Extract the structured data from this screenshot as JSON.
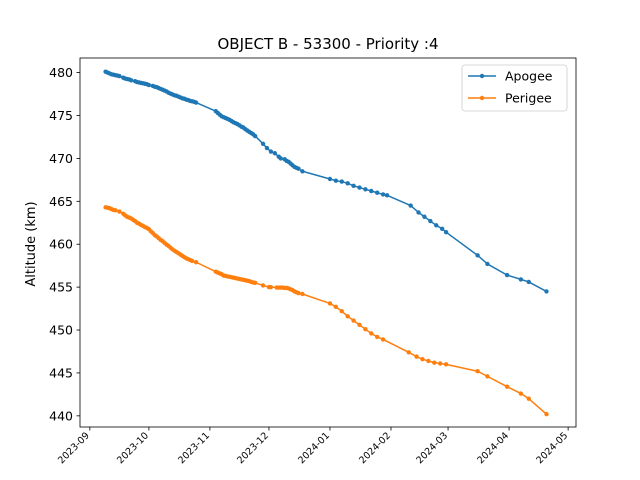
{
  "chart_data": {
    "type": "line",
    "title": "OBJECT B - 53300 - Priority :4",
    "xlabel": "",
    "ylabel": "Altitude (km)",
    "xlim": [
      "2023-08-27",
      "2024-05-05"
    ],
    "ylim": [
      438.7,
      481.7
    ],
    "x_ticks": [
      "2023-09",
      "2023-10",
      "2023-11",
      "2023-12",
      "2024-01",
      "2024-02",
      "2024-03",
      "2024-04",
      "2024-05"
    ],
    "y_ticks": [
      440,
      445,
      450,
      455,
      460,
      465,
      470,
      475,
      480
    ],
    "legend_position": "top-right",
    "grid": false,
    "series": [
      {
        "name": "Apogee",
        "color": "#1f77b4",
        "points": [
          [
            "2023-09-09",
            480.1
          ],
          [
            "2023-09-10",
            480.0
          ],
          [
            "2023-09-11",
            479.9
          ],
          [
            "2023-09-12",
            479.8
          ],
          [
            "2023-09-13",
            479.75
          ],
          [
            "2023-09-14",
            479.7
          ],
          [
            "2023-09-15",
            479.65
          ],
          [
            "2023-09-16",
            479.6
          ],
          [
            "2023-09-18",
            479.4
          ],
          [
            "2023-09-19",
            479.3
          ],
          [
            "2023-09-20",
            479.25
          ],
          [
            "2023-09-21",
            479.2
          ],
          [
            "2023-09-22",
            479.1
          ],
          [
            "2023-09-24",
            479.0
          ],
          [
            "2023-09-25",
            478.9
          ],
          [
            "2023-09-26",
            478.85
          ],
          [
            "2023-09-27",
            478.8
          ],
          [
            "2023-09-28",
            478.75
          ],
          [
            "2023-09-29",
            478.7
          ],
          [
            "2023-09-30",
            478.65
          ],
          [
            "2023-10-01",
            478.55
          ],
          [
            "2023-10-03",
            478.45
          ],
          [
            "2023-10-04",
            478.35
          ],
          [
            "2023-10-05",
            478.3
          ],
          [
            "2023-10-06",
            478.2
          ],
          [
            "2023-10-07",
            478.1
          ],
          [
            "2023-10-08",
            478.0
          ],
          [
            "2023-10-09",
            477.9
          ],
          [
            "2023-10-10",
            477.8
          ],
          [
            "2023-10-11",
            477.65
          ],
          [
            "2023-10-12",
            477.55
          ],
          [
            "2023-10-13",
            477.45
          ],
          [
            "2023-10-14",
            477.35
          ],
          [
            "2023-10-15",
            477.3
          ],
          [
            "2023-10-16",
            477.2
          ],
          [
            "2023-10-17",
            477.1
          ],
          [
            "2023-10-18",
            477.0
          ],
          [
            "2023-10-19",
            476.95
          ],
          [
            "2023-10-20",
            476.85
          ],
          [
            "2023-10-21",
            476.8
          ],
          [
            "2023-10-22",
            476.7
          ],
          [
            "2023-10-23",
            476.65
          ],
          [
            "2023-10-24",
            476.6
          ],
          [
            "2023-10-25",
            476.5
          ],
          [
            "2023-11-04",
            475.5
          ],
          [
            "2023-11-05",
            475.3
          ],
          [
            "2023-11-06",
            475.1
          ],
          [
            "2023-11-07",
            474.9
          ],
          [
            "2023-11-08",
            474.8
          ],
          [
            "2023-11-09",
            474.7
          ],
          [
            "2023-11-10",
            474.6
          ],
          [
            "2023-11-11",
            474.5
          ],
          [
            "2023-11-12",
            474.35
          ],
          [
            "2023-11-13",
            474.2
          ],
          [
            "2023-11-14",
            474.1
          ],
          [
            "2023-11-15",
            474.0
          ],
          [
            "2023-11-16",
            473.85
          ],
          [
            "2023-11-17",
            473.7
          ],
          [
            "2023-11-18",
            473.6
          ],
          [
            "2023-11-19",
            473.4
          ],
          [
            "2023-11-20",
            473.25
          ],
          [
            "2023-11-21",
            473.1
          ],
          [
            "2023-11-22",
            472.95
          ],
          [
            "2023-11-23",
            472.8
          ],
          [
            "2023-11-24",
            472.6
          ],
          [
            "2023-11-28",
            471.7
          ],
          [
            "2023-11-30",
            471.2
          ],
          [
            "2023-12-02",
            470.8
          ],
          [
            "2023-12-04",
            470.6
          ],
          [
            "2023-12-06",
            470.2
          ],
          [
            "2023-12-07",
            470.0
          ],
          [
            "2023-12-09",
            469.9
          ],
          [
            "2023-12-10",
            469.7
          ],
          [
            "2023-12-11",
            469.6
          ],
          [
            "2023-12-12",
            469.4
          ],
          [
            "2023-12-13",
            469.2
          ],
          [
            "2023-12-14",
            469.0
          ],
          [
            "2023-12-15",
            468.9
          ],
          [
            "2023-12-16",
            468.8
          ],
          [
            "2023-12-18",
            468.5
          ],
          [
            "2024-01-01",
            467.6
          ],
          [
            "2024-01-04",
            467.4
          ],
          [
            "2024-01-07",
            467.3
          ],
          [
            "2024-01-10",
            467.1
          ],
          [
            "2024-01-13",
            466.8
          ],
          [
            "2024-01-16",
            466.6
          ],
          [
            "2024-01-19",
            466.4
          ],
          [
            "2024-01-22",
            466.2
          ],
          [
            "2024-01-25",
            466.0
          ],
          [
            "2024-01-28",
            465.8
          ],
          [
            "2024-01-30",
            465.7
          ],
          [
            "2024-02-11",
            464.5
          ],
          [
            "2024-02-15",
            463.7
          ],
          [
            "2024-02-18",
            463.2
          ],
          [
            "2024-02-21",
            462.7
          ],
          [
            "2024-02-24",
            462.2
          ],
          [
            "2024-02-27",
            461.8
          ],
          [
            "2024-02-29",
            461.4
          ],
          [
            "2024-03-16",
            458.7
          ],
          [
            "2024-03-21",
            457.7
          ],
          [
            "2024-03-31",
            456.4
          ],
          [
            "2024-04-07",
            455.9
          ],
          [
            "2024-04-11",
            455.6
          ],
          [
            "2024-04-20",
            454.5
          ]
        ]
      },
      {
        "name": "Perigee",
        "color": "#ff7f0e",
        "points": [
          [
            "2023-09-09",
            464.3
          ],
          [
            "2023-09-10",
            464.25
          ],
          [
            "2023-09-11",
            464.2
          ],
          [
            "2023-09-12",
            464.1
          ],
          [
            "2023-09-13",
            464.0
          ],
          [
            "2023-09-14",
            463.95
          ],
          [
            "2023-09-16",
            463.8
          ],
          [
            "2023-09-18",
            463.55
          ],
          [
            "2023-09-19",
            463.35
          ],
          [
            "2023-09-20",
            463.2
          ],
          [
            "2023-09-21",
            463.1
          ],
          [
            "2023-09-22",
            463.0
          ],
          [
            "2023-09-23",
            462.85
          ],
          [
            "2023-09-24",
            462.7
          ],
          [
            "2023-09-25",
            462.5
          ],
          [
            "2023-09-26",
            462.4
          ],
          [
            "2023-09-27",
            462.25
          ],
          [
            "2023-09-28",
            462.15
          ],
          [
            "2023-09-29",
            462.0
          ],
          [
            "2023-09-30",
            461.9
          ],
          [
            "2023-10-01",
            461.75
          ],
          [
            "2023-10-02",
            461.5
          ],
          [
            "2023-10-03",
            461.3
          ],
          [
            "2023-10-04",
            461.05
          ],
          [
            "2023-10-05",
            460.9
          ],
          [
            "2023-10-06",
            460.7
          ],
          [
            "2023-10-07",
            460.5
          ],
          [
            "2023-10-08",
            460.35
          ],
          [
            "2023-10-09",
            460.15
          ],
          [
            "2023-10-10",
            459.95
          ],
          [
            "2023-10-11",
            459.8
          ],
          [
            "2023-10-12",
            459.6
          ],
          [
            "2023-10-13",
            459.4
          ],
          [
            "2023-10-14",
            459.25
          ],
          [
            "2023-10-15",
            459.1
          ],
          [
            "2023-10-16",
            458.95
          ],
          [
            "2023-10-17",
            458.8
          ],
          [
            "2023-10-18",
            458.65
          ],
          [
            "2023-10-19",
            458.5
          ],
          [
            "2023-10-20",
            458.35
          ],
          [
            "2023-10-21",
            458.25
          ],
          [
            "2023-10-22",
            458.15
          ],
          [
            "2023-10-23",
            458.05
          ],
          [
            "2023-10-25",
            457.9
          ],
          [
            "2023-11-04",
            456.8
          ],
          [
            "2023-11-05",
            456.7
          ],
          [
            "2023-11-06",
            456.6
          ],
          [
            "2023-11-07",
            456.5
          ],
          [
            "2023-11-08",
            456.35
          ],
          [
            "2023-11-09",
            456.3
          ],
          [
            "2023-11-10",
            456.25
          ],
          [
            "2023-11-11",
            456.2
          ],
          [
            "2023-11-12",
            456.15
          ],
          [
            "2023-11-13",
            456.1
          ],
          [
            "2023-11-14",
            456.05
          ],
          [
            "2023-11-15",
            456.0
          ],
          [
            "2023-11-16",
            455.95
          ],
          [
            "2023-11-17",
            455.9
          ],
          [
            "2023-11-18",
            455.85
          ],
          [
            "2023-11-19",
            455.8
          ],
          [
            "2023-11-20",
            455.75
          ],
          [
            "2023-11-21",
            455.7
          ],
          [
            "2023-11-22",
            455.6
          ],
          [
            "2023-11-23",
            455.55
          ],
          [
            "2023-11-24",
            455.5
          ],
          [
            "2023-11-28",
            455.2
          ],
          [
            "2023-12-01",
            455.0
          ],
          [
            "2023-12-02",
            455.0
          ],
          [
            "2023-12-05",
            454.95
          ],
          [
            "2023-12-06",
            454.95
          ],
          [
            "2023-12-07",
            454.95
          ],
          [
            "2023-12-08",
            454.95
          ],
          [
            "2023-12-09",
            454.9
          ],
          [
            "2023-12-10",
            454.9
          ],
          [
            "2023-12-11",
            454.85
          ],
          [
            "2023-12-12",
            454.75
          ],
          [
            "2023-12-13",
            454.65
          ],
          [
            "2023-12-14",
            454.5
          ],
          [
            "2023-12-15",
            454.4
          ],
          [
            "2023-12-16",
            454.3
          ],
          [
            "2023-12-18",
            454.2
          ],
          [
            "2024-01-01",
            453.1
          ],
          [
            "2024-01-04",
            452.7
          ],
          [
            "2024-01-07",
            452.2
          ],
          [
            "2024-01-10",
            451.6
          ],
          [
            "2024-01-13",
            451.1
          ],
          [
            "2024-01-16",
            450.6
          ],
          [
            "2024-01-19",
            450.1
          ],
          [
            "2024-01-22",
            449.6
          ],
          [
            "2024-01-25",
            449.2
          ],
          [
            "2024-01-28",
            448.9
          ],
          [
            "2024-02-10",
            447.4
          ],
          [
            "2024-02-14",
            446.9
          ],
          [
            "2024-02-17",
            446.6
          ],
          [
            "2024-02-20",
            446.4
          ],
          [
            "2024-02-23",
            446.2
          ],
          [
            "2024-02-26",
            446.1
          ],
          [
            "2024-02-29",
            446.0
          ],
          [
            "2024-03-16",
            445.2
          ],
          [
            "2024-03-21",
            444.6
          ],
          [
            "2024-03-31",
            443.4
          ],
          [
            "2024-04-07",
            442.6
          ],
          [
            "2024-04-11",
            442.0
          ],
          [
            "2024-04-20",
            440.2
          ]
        ]
      }
    ]
  }
}
